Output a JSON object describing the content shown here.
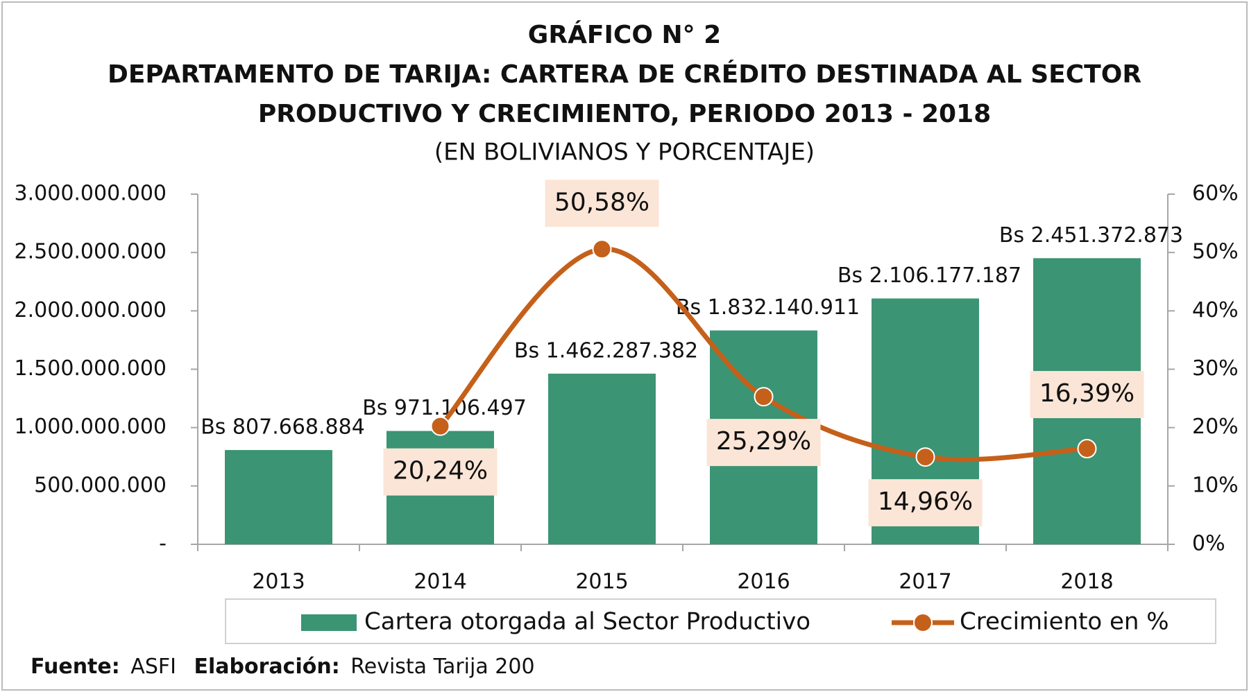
{
  "chart_data": {
    "type": "bar",
    "title": [
      "GRÁFICO N° 2",
      "DEPARTAMENTO DE TARIJA: CARTERA DE CRÉDITO DESTINADA AL SECTOR",
      "PRODUCTIVO Y CRECIMIENTO, PERIODO 2013 - 2018"
    ],
    "subtitle": "(EN BOLIVIANOS Y PORCENTAJE)",
    "categories": [
      "2013",
      "2014",
      "2015",
      "2016",
      "2017",
      "2018"
    ],
    "series": [
      {
        "name": "Cartera otorgada al Sector Productivo",
        "type": "bar",
        "color": "#3b9474",
        "values": [
          807668884,
          971106497,
          1462287382,
          1832140911,
          2106177187,
          2451372873
        ],
        "value_labels": [
          "Bs 807.668.884",
          "Bs 971.106.497",
          "Bs 1.462.287.382",
          "Bs 1.832.140.911",
          "Bs 2.106.177.187",
          "Bs 2.451.372.873"
        ]
      },
      {
        "name": "Crecimiento en %",
        "type": "line",
        "axis": "y2",
        "color": "#c5601a",
        "values": [
          null,
          20.24,
          50.58,
          25.29,
          14.96,
          16.39
        ],
        "value_labels": [
          null,
          "20,24%",
          "50,58%",
          "25,29%",
          "14,96%",
          "16,39%"
        ]
      }
    ],
    "ylim": [
      0,
      3000000000
    ],
    "yticks": [
      {
        "value": 0,
        "label": "-"
      },
      {
        "value": 500000000,
        "label": "500.000.000"
      },
      {
        "value": 1000000000,
        "label": "1.000.000.000"
      },
      {
        "value": 1500000000,
        "label": "1.500.000.000"
      },
      {
        "value": 2000000000,
        "label": "2.000.000.000"
      },
      {
        "value": 2500000000,
        "label": "2.500.000.000"
      },
      {
        "value": 3000000000,
        "label": "3.000.000.000"
      }
    ],
    "y2lim": [
      0,
      60
    ],
    "y2ticks": [
      {
        "value": 0,
        "label": "0%"
      },
      {
        "value": 10,
        "label": "10%"
      },
      {
        "value": 20,
        "label": "20%"
      },
      {
        "value": 30,
        "label": "30%"
      },
      {
        "value": 40,
        "label": "40%"
      },
      {
        "value": 50,
        "label": "50%"
      },
      {
        "value": 60,
        "label": "60%"
      }
    ],
    "legend": "bottom",
    "source": {
      "label": "Fuente:",
      "text": "ASFI"
    },
    "elaboration": {
      "label": "Elaboración:",
      "text": "Revista Tarija 200"
    }
  }
}
